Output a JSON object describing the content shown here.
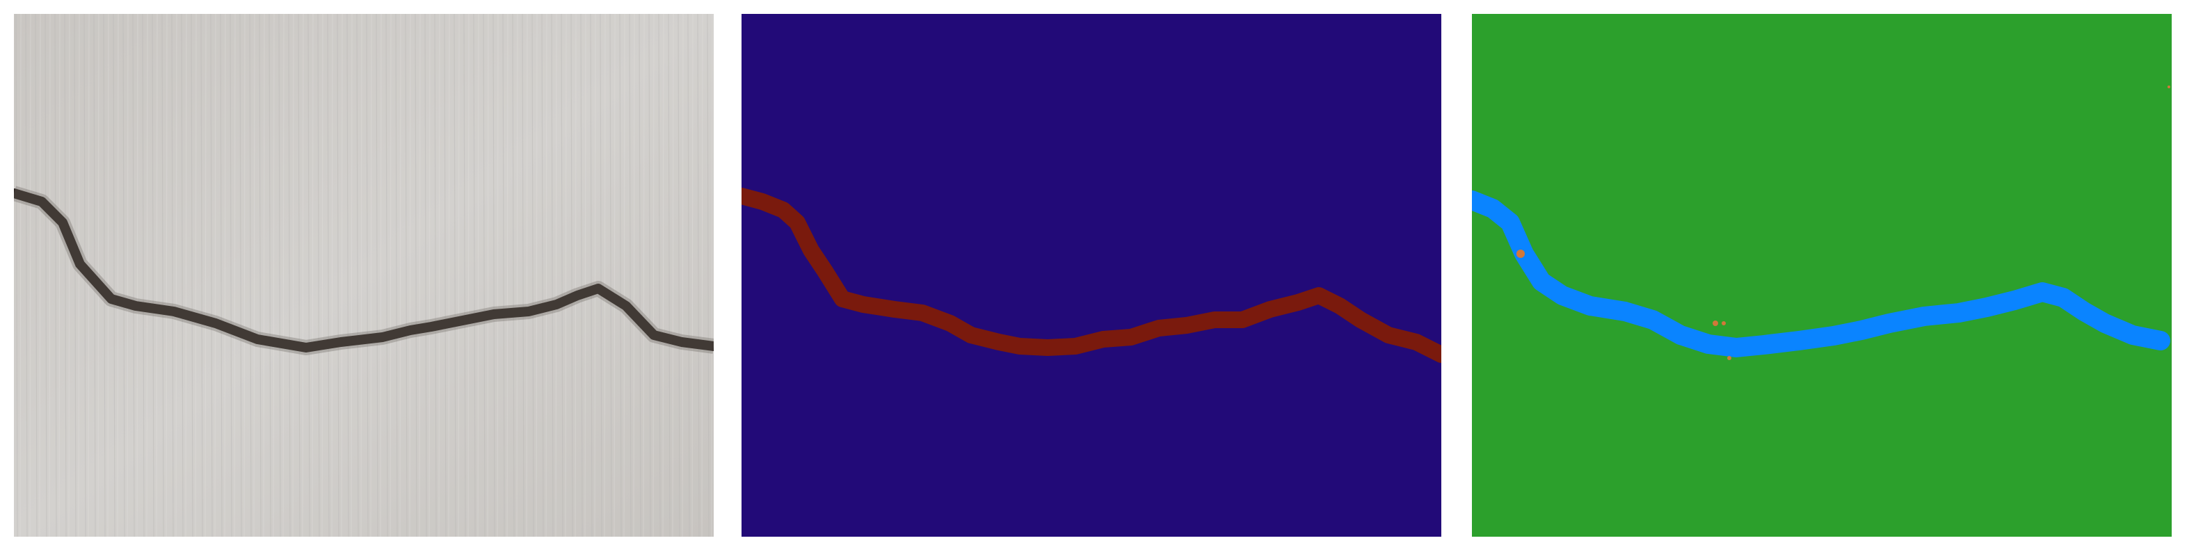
{
  "figure": {
    "panels": [
      {
        "id": "photo",
        "kind": "photograph",
        "subject": "concrete-surface-with-crack",
        "colors": {
          "background": "#cfcdc9",
          "crack": "#2a221e"
        }
      },
      {
        "id": "ground-truth-mask",
        "kind": "segmentation-mask",
        "colors": {
          "background": "#220a78",
          "crack": "#7a1a0d"
        }
      },
      {
        "id": "predicted-mask",
        "kind": "segmentation-mask",
        "colors": {
          "background": "#2ca02c",
          "crack": "#0a84ff",
          "noise": "#d2783a"
        }
      }
    ]
  }
}
